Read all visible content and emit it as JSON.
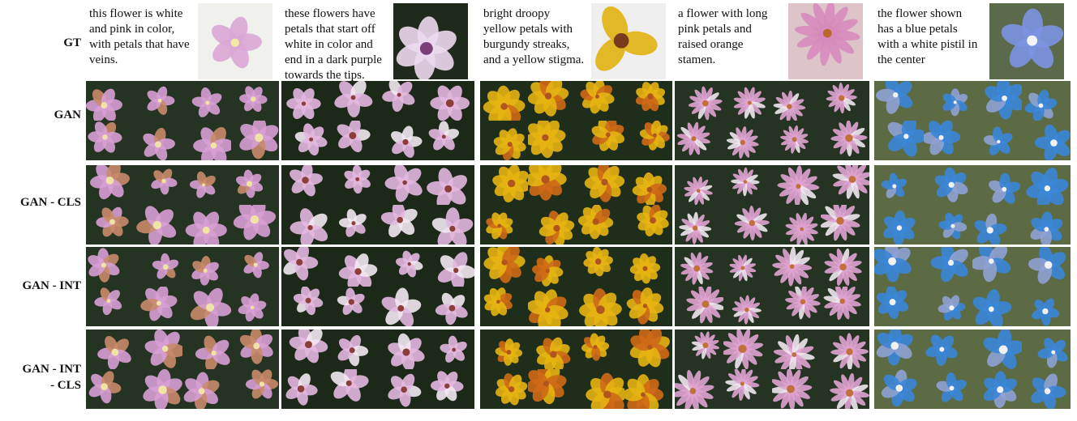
{
  "row_labels": [
    "GT",
    "GAN",
    "GAN - CLS",
    "GAN - INT",
    "GAN - INT\n- CLS"
  ],
  "columns": [
    {
      "caption": "this flower is white and pink in color, with petals that have veins.",
      "gt": {
        "bg": "#f0f0ec",
        "petal": "#d9a6d6",
        "center": "#f3e9a0",
        "petals": 5,
        "dark_bg": false
      },
      "palette": {
        "bg": "#253322",
        "petal": "#d79fd4",
        "center": "#efe3a6",
        "alt": "#c98a6a"
      }
    },
    {
      "caption": "these flowers have petals that start off white in color and end in a dark purple towards the tips.",
      "gt": {
        "bg": "#1f2a1c",
        "petal": "#ecd9ee",
        "center": "#7b3f7a",
        "petals": 6,
        "dark_bg": true
      },
      "palette": {
        "bg": "#1c2919",
        "petal": "#e3b7df",
        "center": "#8b3f3a",
        "alt": "#f2e8f2"
      }
    },
    {
      "caption": "bright droopy yellow petals with burgundy streaks, and a yellow stigma.",
      "gt": {
        "bg": "#efefef",
        "petal": "#e0b111",
        "center": "#7a3a1c",
        "petals": 3,
        "dark_bg": false
      },
      "palette": {
        "bg": "#1f2d1b",
        "petal": "#e6b412",
        "center": "#b0551e",
        "alt": "#cf6a17"
      }
    },
    {
      "caption": "a flower with long pink petals and raised orange stamen.",
      "gt": {
        "bg": "#dcc4c8",
        "petal": "#d78bbd",
        "center": "#b8682b",
        "petals": 12,
        "dark_bg": false
      },
      "palette": {
        "bg": "#253322",
        "petal": "#e0a3d2",
        "center": "#c0703a",
        "alt": "#f1e5ef"
      }
    },
    {
      "caption": "the flower shown has a blue petals with a white pistil in the center",
      "gt": {
        "bg": "#5a6a4a",
        "petal": "#7b93e2",
        "center": "#f5f5f5",
        "petals": 5,
        "dark_bg": true
      },
      "palette": {
        "bg": "#5c6b44",
        "petal": "#3a86d8",
        "center": "#f2f2f2",
        "alt": "#8ea2d4"
      }
    }
  ]
}
